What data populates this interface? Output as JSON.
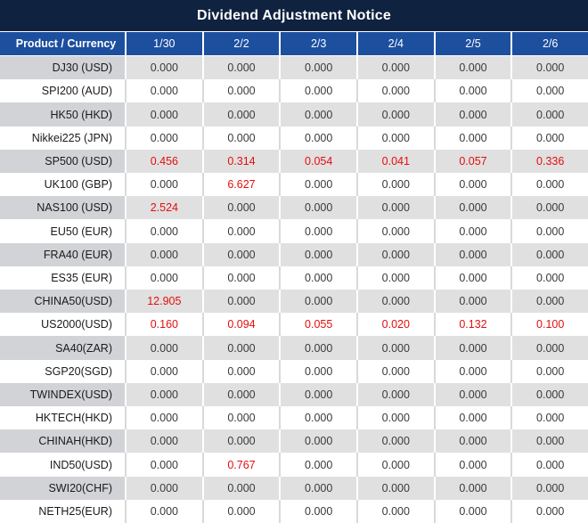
{
  "colors": {
    "title_navy": "#0f2240",
    "header_blue": "#1d4f9f",
    "row_gray": "#e0e0e0",
    "product_gray": "#d2d3d7",
    "separator_gray": "#d9d9d9",
    "zero_text": "#3a3a3a",
    "nonzero_red": "#e60d0d"
  },
  "chart_data": {
    "type": "table",
    "title": "Dividend Adjustment Notice",
    "columns": [
      "Product / Currency",
      "1/30",
      "2/2",
      "2/3",
      "2/4",
      "2/5",
      "2/6"
    ],
    "rows": [
      {
        "product": "DJ30 (USD)",
        "values": [
          "0.000",
          "0.000",
          "0.000",
          "0.000",
          "0.000",
          "0.000"
        ]
      },
      {
        "product": "SPI200 (AUD)",
        "values": [
          "0.000",
          "0.000",
          "0.000",
          "0.000",
          "0.000",
          "0.000"
        ]
      },
      {
        "product": "HK50 (HKD)",
        "values": [
          "0.000",
          "0.000",
          "0.000",
          "0.000",
          "0.000",
          "0.000"
        ]
      },
      {
        "product": "Nikkei225 (JPN)",
        "values": [
          "0.000",
          "0.000",
          "0.000",
          "0.000",
          "0.000",
          "0.000"
        ]
      },
      {
        "product": "SP500 (USD)",
        "values": [
          "0.456",
          "0.314",
          "0.054",
          "0.041",
          "0.057",
          "0.336"
        ]
      },
      {
        "product": "UK100 (GBP)",
        "values": [
          "0.000",
          "6.627",
          "0.000",
          "0.000",
          "0.000",
          "0.000"
        ]
      },
      {
        "product": "NAS100 (USD)",
        "values": [
          "2.524",
          "0.000",
          "0.000",
          "0.000",
          "0.000",
          "0.000"
        ]
      },
      {
        "product": "EU50 (EUR)",
        "values": [
          "0.000",
          "0.000",
          "0.000",
          "0.000",
          "0.000",
          "0.000"
        ]
      },
      {
        "product": "FRA40 (EUR)",
        "values": [
          "0.000",
          "0.000",
          "0.000",
          "0.000",
          "0.000",
          "0.000"
        ]
      },
      {
        "product": "ES35 (EUR)",
        "values": [
          "0.000",
          "0.000",
          "0.000",
          "0.000",
          "0.000",
          "0.000"
        ]
      },
      {
        "product": "CHINA50(USD)",
        "values": [
          "12.905",
          "0.000",
          "0.000",
          "0.000",
          "0.000",
          "0.000"
        ]
      },
      {
        "product": "US2000(USD)",
        "values": [
          "0.160",
          "0.094",
          "0.055",
          "0.020",
          "0.132",
          "0.100"
        ]
      },
      {
        "product": "SA40(ZAR)",
        "values": [
          "0.000",
          "0.000",
          "0.000",
          "0.000",
          "0.000",
          "0.000"
        ]
      },
      {
        "product": "SGP20(SGD)",
        "values": [
          "0.000",
          "0.000",
          "0.000",
          "0.000",
          "0.000",
          "0.000"
        ]
      },
      {
        "product": "TWINDEX(USD)",
        "values": [
          "0.000",
          "0.000",
          "0.000",
          "0.000",
          "0.000",
          "0.000"
        ]
      },
      {
        "product": "HKTECH(HKD)",
        "values": [
          "0.000",
          "0.000",
          "0.000",
          "0.000",
          "0.000",
          "0.000"
        ]
      },
      {
        "product": "CHINAH(HKD)",
        "values": [
          "0.000",
          "0.000",
          "0.000",
          "0.000",
          "0.000",
          "0.000"
        ]
      },
      {
        "product": "IND50(USD)",
        "values": [
          "0.000",
          "0.767",
          "0.000",
          "0.000",
          "0.000",
          "0.000"
        ]
      },
      {
        "product": "SWI20(CHF)",
        "values": [
          "0.000",
          "0.000",
          "0.000",
          "0.000",
          "0.000",
          "0.000"
        ]
      },
      {
        "product": "NETH25(EUR)",
        "values": [
          "0.000",
          "0.000",
          "0.000",
          "0.000",
          "0.000",
          "0.000"
        ]
      }
    ]
  }
}
